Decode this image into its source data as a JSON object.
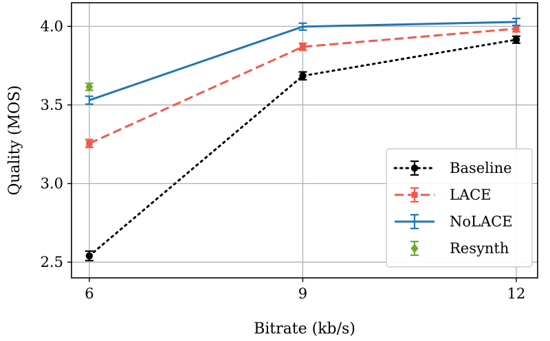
{
  "chart_data": {
    "type": "line",
    "xlabel": "Bitrate (kb/s)",
    "ylabel": "Quality (MOS)",
    "x_ticks": [
      6,
      9,
      12
    ],
    "y_ticks": [
      2.5,
      3.0,
      3.5,
      4.0
    ],
    "y_tick_labels": [
      "2.5",
      "3.0",
      "3.5",
      "4.0"
    ],
    "xlim": [
      5.75,
      12.3
    ],
    "ylim": [
      2.4,
      4.15
    ],
    "grid": true,
    "legend_position": "bottom-right",
    "series": [
      {
        "name": "Baseline",
        "color": "#000000",
        "line_style": "dotted",
        "marker": "circle",
        "points": [
          {
            "x": 6,
            "y": 2.54,
            "err": 0.03
          },
          {
            "x": 9,
            "y": 3.685,
            "err": 0.025
          },
          {
            "x": 12,
            "y": 3.915,
            "err": 0.022
          }
        ]
      },
      {
        "name": "LACE",
        "color": "#f2594b",
        "line_style": "dashed",
        "marker": "square",
        "points": [
          {
            "x": 6,
            "y": 3.255,
            "err": 0.025
          },
          {
            "x": 9,
            "y": 3.87,
            "err": 0.022
          },
          {
            "x": 12,
            "y": 3.985,
            "err": 0.02
          }
        ]
      },
      {
        "name": "NoLACE",
        "color": "#1f77b4",
        "line_style": "solid",
        "marker": "none",
        "points": [
          {
            "x": 6,
            "y": 3.53,
            "err": 0.025
          },
          {
            "x": 9,
            "y": 3.998,
            "err": 0.022
          },
          {
            "x": 12,
            "y": 4.028,
            "err": 0.022
          }
        ]
      },
      {
        "name": "Resynth",
        "color": "#6aab2e",
        "line_style": "none",
        "marker": "diamond",
        "points": [
          {
            "x": 6,
            "y": 3.615,
            "err": 0.022
          }
        ]
      }
    ]
  }
}
